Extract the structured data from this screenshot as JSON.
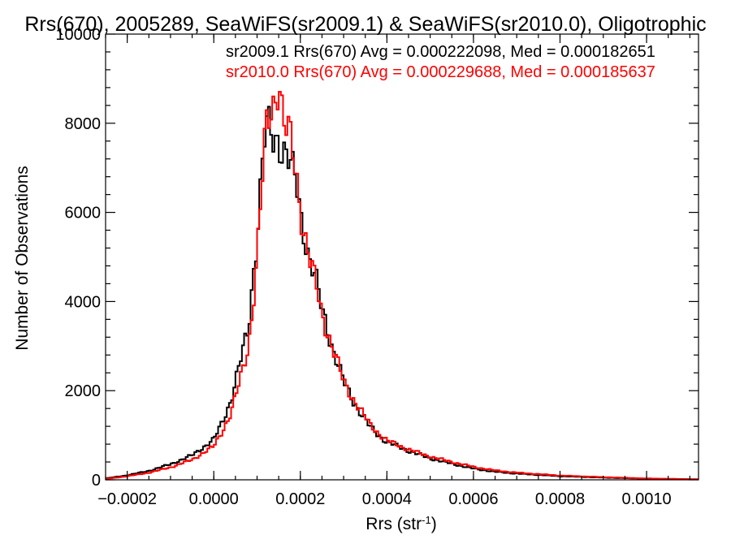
{
  "chart_data": {
    "type": "histogram",
    "title": "Rrs(670), 2005289, SeaWiFS(sr2009.1) & SeaWiFS(sr2010.0), Oligotrophic",
    "xlabel": "Rrs (str",
    "xlabel_sup": "-1",
    "xlabel_close": ")",
    "ylabel": "Number of Observations",
    "xlim": [
      -0.00025,
      0.00112
    ],
    "ylim": [
      0,
      10000
    ],
    "xticks": [
      -0.0002,
      0.0,
      0.0002,
      0.0004,
      0.0006,
      0.0008,
      0.001
    ],
    "xtick_labels": [
      "−0.0002",
      "0.0000",
      "0.0002",
      "0.0004",
      "0.0006",
      "0.0008",
      "0.0010"
    ],
    "yticks": [
      0,
      2000,
      4000,
      6000,
      8000,
      10000
    ],
    "ytick_labels": [
      "0",
      "2000",
      "4000",
      "6000",
      "8000",
      "10000"
    ],
    "grid": false,
    "annotations": [
      {
        "text": "sr2009.1 Rrs(670) Avg = 0.000222098, Med = 0.000182651",
        "color": "#000000"
      },
      {
        "text": "sr2010.0 Rrs(670) Avg = 0.000229688, Med = 0.000185637",
        "color": "#ff0000"
      }
    ],
    "series": [
      {
        "name": "sr2009.1",
        "color": "#000000",
        "x": [
          -0.00025,
          -0.0002,
          -0.00015,
          -0.0001,
          -5e-05,
          0.0,
          2e-05,
          4e-05,
          6e-05,
          8e-05,
          9e-05,
          0.0001,
          0.00011,
          0.00012,
          0.00013,
          0.00014,
          0.00015,
          0.00016,
          0.00017,
          0.00018,
          0.00019,
          0.0002,
          0.00021,
          0.00022,
          0.00023,
          0.00024,
          0.00025,
          0.00026,
          0.00027,
          0.00028,
          0.0003,
          0.00032,
          0.00034,
          0.00036,
          0.00038,
          0.0004,
          0.00045,
          0.0005,
          0.00055,
          0.0006,
          0.00065,
          0.0007,
          0.0008,
          0.0009,
          0.001,
          0.00112
        ],
        "y": [
          30,
          100,
          200,
          350,
          550,
          900,
          1300,
          1800,
          2600,
          3400,
          4500,
          5500,
          6800,
          7900,
          7800,
          7600,
          7700,
          7400,
          7300,
          6900,
          6700,
          6000,
          5500,
          5000,
          4700,
          4300,
          3800,
          3500,
          3100,
          2800,
          2200,
          1800,
          1500,
          1200,
          1000,
          850,
          650,
          480,
          360,
          250,
          180,
          140,
          80,
          50,
          25,
          10
        ]
      },
      {
        "name": "sr2010.0",
        "color": "#ff0000",
        "x": [
          -0.00025,
          -0.0002,
          -0.00015,
          -0.0001,
          -5e-05,
          0.0,
          2e-05,
          4e-05,
          6e-05,
          8e-05,
          9e-05,
          0.0001,
          0.00011,
          0.00012,
          0.00013,
          0.00014,
          0.00015,
          0.00016,
          0.00017,
          0.00018,
          0.00019,
          0.0002,
          0.00021,
          0.00022,
          0.00023,
          0.00024,
          0.00025,
          0.00026,
          0.00027,
          0.00028,
          0.0003,
          0.00032,
          0.00034,
          0.00036,
          0.00038,
          0.0004,
          0.00045,
          0.0005,
          0.00055,
          0.0006,
          0.00065,
          0.0007,
          0.0008,
          0.0009,
          0.001,
          0.00112
        ],
        "y": [
          20,
          80,
          160,
          280,
          450,
          750,
          1100,
          1500,
          2200,
          3000,
          3900,
          5000,
          6400,
          7800,
          8300,
          8500,
          9100,
          8000,
          7800,
          7500,
          6900,
          6100,
          5500,
          5000,
          4600,
          4200,
          3700,
          3400,
          3100,
          2800,
          2200,
          1850,
          1550,
          1250,
          1050,
          880,
          680,
          520,
          400,
          290,
          210,
          160,
          95,
          60,
          30,
          12
        ]
      }
    ]
  }
}
